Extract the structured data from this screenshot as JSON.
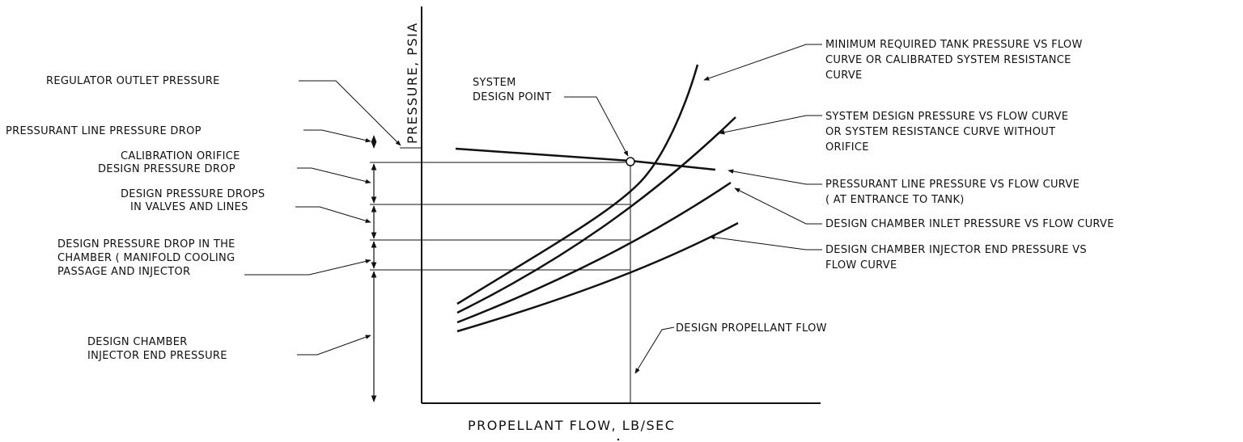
{
  "axes": {
    "y_title": "PRESSURE, PSIA",
    "x_title": "PROPELLANT FLOW, LB/SEC"
  },
  "left_labels": {
    "regulator_outlet": [
      "REGULATOR OUTLET PRESSURE"
    ],
    "pressurant_line_drop": [
      "PRESSURANT LINE PRESSURE DROP"
    ],
    "calibration_orifice": [
      "CALIBRATION ORIFICE",
      "DESIGN PRESSURE DROP"
    ],
    "valves_lines": [
      "DESIGN PRESSURE DROPS",
      "IN VALVES AND LINES"
    ],
    "chamber_drop": [
      "DESIGN PRESSURE DROP IN THE",
      "CHAMBER ( MANIFOLD COOLING",
      "PASSAGE AND INJECTOR"
    ],
    "injector_end": [
      "DESIGN CHAMBER",
      "INJECTOR END PRESSURE"
    ]
  },
  "center_labels": {
    "system_design_point": [
      "SYSTEM",
      "DESIGN POINT"
    ],
    "design_propellant_flow": [
      "DESIGN PROPELLANT FLOW"
    ]
  },
  "right_labels": {
    "min_tank_pressure": [
      "MINIMUM REQUIRED TANK PRESSURE VS FLOW",
      "CURVE OR CALIBRATED SYSTEM RESISTANCE",
      "CURVE"
    ],
    "system_design_pressure": [
      "SYSTEM DESIGN PRESSURE VS FLOW CURVE",
      "OR SYSTEM RESISTANCE CURVE WITHOUT",
      "ORIFICE"
    ],
    "pressurant_line_pressure": [
      "PRESSURANT LINE PRESSURE VS FLOW CURVE",
      "( AT ENTRANCE TO TANK)"
    ],
    "chamber_inlet": [
      "DESIGN CHAMBER INLET PRESSURE VS FLOW CURVE"
    ],
    "injector_end_curve": [
      "DESIGN CHAMBER INJECTOR END PRESSURE VS",
      "FLOW CURVE"
    ]
  },
  "colors": {
    "ink": "#111111",
    "paper": "#ffffff"
  }
}
